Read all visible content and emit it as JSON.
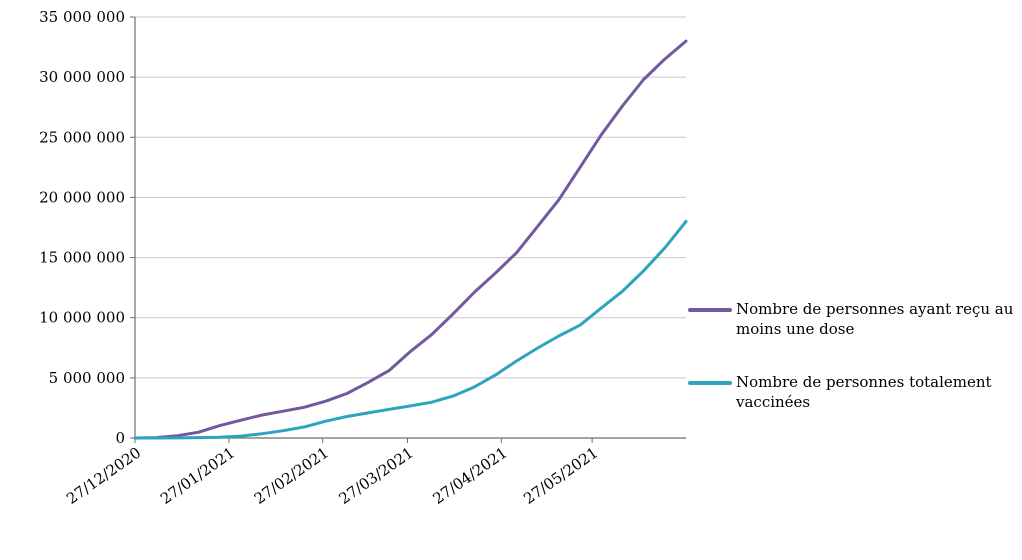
{
  "colors": {
    "background": "#FFFFFF",
    "grid": "#C8C8C8",
    "axis": "#6E6E6E",
    "text": "#000000"
  },
  "chart_data": {
    "type": "line",
    "title": "",
    "grid": true,
    "legend_position": "right",
    "x_axis": {
      "tick_labels": [
        "27/12/2020",
        "27/01/2021",
        "27/02/2021",
        "27/03/2021",
        "27/04/2021",
        "27/05/2021"
      ],
      "tick_days": [
        0,
        31,
        62,
        90,
        121,
        151
      ],
      "xlim_days": [
        0,
        182
      ]
    },
    "y_axis": {
      "tick_values": [
        0,
        5000000,
        10000000,
        15000000,
        20000000,
        25000000,
        30000000,
        35000000
      ],
      "tick_labels": [
        "0",
        "5 000 000",
        "10 000 000",
        "15 000 000",
        "20 000 000",
        "25 000 000",
        "30 000 000",
        "35 000 000"
      ],
      "ylim": [
        0,
        35000000
      ]
    },
    "x_days": [
      0,
      7,
      14,
      21,
      28,
      35,
      42,
      49,
      56,
      63,
      70,
      77,
      84,
      91,
      98,
      105,
      112,
      119,
      126,
      133,
      140,
      147,
      154,
      161,
      168,
      175,
      182
    ],
    "x_dates": [
      "27/12/2020",
      "03/01/2021",
      "10/01/2021",
      "17/01/2021",
      "24/01/2021",
      "31/01/2021",
      "07/02/2021",
      "14/02/2021",
      "21/02/2021",
      "28/02/2021",
      "07/03/2021",
      "14/03/2021",
      "21/03/2021",
      "28/03/2021",
      "04/04/2021",
      "11/04/2021",
      "18/04/2021",
      "25/04/2021",
      "02/05/2021",
      "09/05/2021",
      "16/05/2021",
      "23/05/2021",
      "30/05/2021",
      "06/06/2021",
      "13/06/2021",
      "20/06/2021",
      "27/06/2021"
    ],
    "series": [
      {
        "name": "Nombre de personnes ayant reçu au moins une dose",
        "color": "#71589F",
        "values": [
          0,
          30000,
          190000,
          480000,
          1030000,
          1480000,
          1910000,
          2230000,
          2560000,
          3060000,
          3700000,
          4620000,
          5620000,
          7200000,
          8600000,
          10300000,
          12100000,
          13700000,
          15400000,
          17600000,
          19800000,
          22500000,
          25200000,
          27600000,
          29800000,
          31500000,
          33000000
        ]
      },
      {
        "name": "Nombre de personnes totalement vaccinées",
        "color": "#2EA3BD",
        "values": [
          0,
          0,
          10000,
          30000,
          70000,
          160000,
          360000,
          610000,
          920000,
          1400000,
          1790000,
          2090000,
          2390000,
          2670000,
          2980000,
          3480000,
          4230000,
          5230000,
          6400000,
          7480000,
          8480000,
          9380000,
          10800000,
          12200000,
          13900000,
          15800000,
          18000000
        ]
      }
    ]
  }
}
